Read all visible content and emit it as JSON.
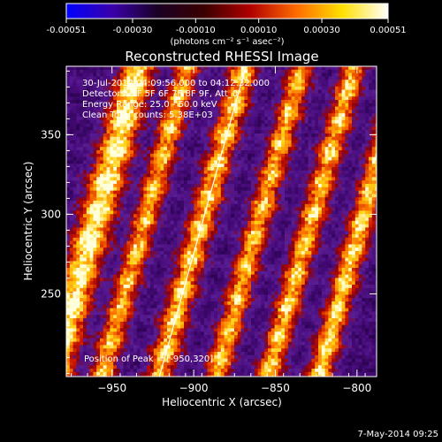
{
  "colorbar": {
    "tick_labels": [
      "-0.00051",
      "-0.00030",
      "-0.00010",
      "0.00010",
      "0.00030",
      "0.00051"
    ],
    "tick_values": [
      -0.00051,
      -0.0003,
      -0.0001,
      0.0001,
      0.0003,
      0.00051
    ],
    "range": [
      -0.00051,
      0.00051
    ],
    "units_label": "(photons cm⁻² s⁻¹ asec⁻²)",
    "colors": [
      "#0000ff",
      "#3a00a8",
      "#1a0024",
      "#3a0000",
      "#b00000",
      "#ff6a00",
      "#ffe000",
      "#ffffff"
    ]
  },
  "footer": {
    "date_stamp": "7-May-2014 09:25"
  },
  "chart_data": {
    "type": "heatmap",
    "title": "Reconstructed RHESSI Image",
    "xlabel": "Heliocentric X (arcsec)",
    "ylabel": "Heliocentric Y (arcsec)",
    "xlim": [
      -978,
      -788
    ],
    "ylim": [
      198,
      393
    ],
    "x_ticks": [
      -950,
      -900,
      -850,
      -800
    ],
    "x_tick_labels": [
      "−950",
      "−900",
      "−850",
      "−800"
    ],
    "y_ticks": [
      250,
      300,
      350
    ],
    "y_tick_labels": [
      "250",
      "300",
      "350"
    ],
    "annotations": [
      "30-Jul-2012 04:09:56.000 to 04:12:32.000",
      "Detectors: 3F 5F 6F 7F 8F 9F, Att_0",
      "Energy Range: 25.0 - 50.0 keV",
      "Clean    Total counts: 5.38E+03",
      "Position of Peak = [-950,320]"
    ],
    "peak_position": [
      -950,
      320
    ],
    "limb_line": [
      [
        -921,
        198
      ],
      [
        -868,
        393
      ]
    ],
    "stripes": [
      {
        "x_at_y_center": -960,
        "width": 14,
        "intensity": 1.0
      },
      {
        "x_at_y_center": -930,
        "width": 10,
        "intensity": 0.75
      },
      {
        "x_at_y_center": -895,
        "width": 11,
        "intensity": 0.8
      },
      {
        "x_at_y_center": -860,
        "width": 10,
        "intensity": 0.75
      },
      {
        "x_at_y_center": -828,
        "width": 10,
        "intensity": 0.8
      },
      {
        "x_at_y_center": -797,
        "width": 10,
        "intensity": 0.85
      }
    ]
  }
}
